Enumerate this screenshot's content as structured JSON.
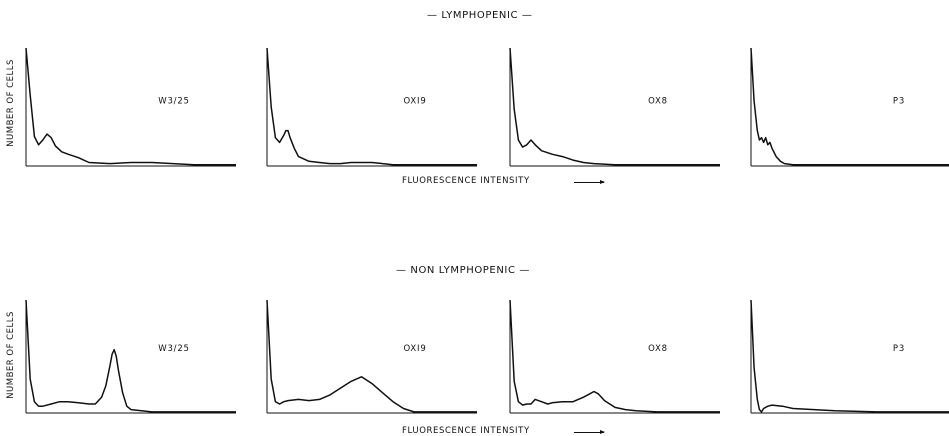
{
  "sections": [
    {
      "title": "— LYMPHOPENIC —",
      "ylabel": "NUMBER OF CELLS",
      "xlabel": "FLUORESCENCE INTENSITY"
    },
    {
      "title": "— NON LYMPHOPENIC —",
      "ylabel": "NUMBER OF CELLS",
      "xlabel": "FLUORESCENCE INTENSITY"
    }
  ],
  "chart_data": [
    {
      "type": "line",
      "row": 0,
      "title": "W3/25",
      "x": [
        0,
        2,
        4,
        6,
        8,
        10,
        12,
        14,
        17,
        20,
        25,
        30,
        40,
        50,
        60,
        70,
        80,
        90,
        100
      ],
      "y": [
        100,
        60,
        25,
        18,
        22,
        27,
        24,
        17,
        12,
        10,
        7,
        3,
        2,
        3,
        3,
        2,
        1,
        1,
        1
      ],
      "xlim": [
        0,
        100
      ],
      "ylim": [
        0,
        100
      ]
    },
    {
      "type": "line",
      "row": 0,
      "title": "OXI9",
      "x": [
        0,
        2,
        4,
        6,
        8,
        9,
        10,
        11,
        13,
        15,
        20,
        25,
        30,
        35,
        40,
        45,
        50,
        55,
        60,
        70,
        80,
        90,
        100
      ],
      "y": [
        100,
        50,
        24,
        20,
        26,
        30,
        30,
        24,
        15,
        8,
        4,
        3,
        2,
        2,
        3,
        3,
        3,
        2,
        1,
        1,
        1,
        1,
        1
      ],
      "xlim": [
        0,
        100
      ],
      "ylim": [
        0,
        100
      ]
    },
    {
      "type": "line",
      "row": 0,
      "title": "OX8",
      "x": [
        0,
        2,
        4,
        6,
        8,
        10,
        12,
        15,
        20,
        25,
        30,
        35,
        40,
        50,
        60,
        80,
        100
      ],
      "y": [
        100,
        48,
        22,
        16,
        18,
        22,
        18,
        13,
        10,
        8,
        5,
        3,
        2,
        1,
        1,
        1,
        1
      ],
      "xlim": [
        0,
        100
      ],
      "ylim": [
        0,
        100
      ]
    },
    {
      "type": "line",
      "row": 0,
      "title": "P3",
      "x": [
        0,
        1.5,
        3,
        4,
        5,
        6,
        7,
        8,
        9,
        10,
        12,
        14,
        16,
        20,
        25,
        30,
        40,
        60,
        80,
        100
      ],
      "y": [
        100,
        55,
        30,
        22,
        24,
        20,
        24,
        18,
        20,
        15,
        8,
        4,
        2,
        1,
        1,
        1,
        1,
        1,
        1,
        1
      ],
      "xlim": [
        0,
        100
      ],
      "ylim": [
        0,
        100
      ]
    },
    {
      "type": "line",
      "row": 1,
      "title": "W3/25",
      "x": [
        0,
        2,
        4,
        6,
        8,
        12,
        16,
        20,
        25,
        30,
        33,
        36,
        38,
        40,
        41,
        42,
        43,
        44,
        46,
        48,
        50,
        55,
        60,
        70,
        80,
        100
      ],
      "y": [
        100,
        30,
        10,
        6,
        6,
        8,
        10,
        10,
        9,
        8,
        8,
        14,
        24,
        42,
        52,
        56,
        50,
        38,
        18,
        6,
        3,
        2,
        1,
        1,
        1,
        1
      ],
      "xlim": [
        0,
        100
      ],
      "ylim": [
        0,
        100
      ]
    },
    {
      "type": "line",
      "row": 1,
      "title": "OXI9",
      "x": [
        0,
        2,
        4,
        6,
        8,
        10,
        15,
        20,
        25,
        30,
        35,
        40,
        45,
        50,
        55,
        60,
        65,
        70,
        75,
        80,
        90,
        100
      ],
      "y": [
        100,
        30,
        10,
        8,
        10,
        11,
        12,
        11,
        12,
        16,
        22,
        28,
        32,
        26,
        18,
        10,
        4,
        1,
        1,
        1,
        1,
        1
      ],
      "xlim": [
        0,
        100
      ],
      "ylim": [
        0,
        100
      ]
    },
    {
      "type": "line",
      "row": 1,
      "title": "OX8",
      "x": [
        0,
        2,
        4,
        6,
        8,
        10,
        12,
        15,
        18,
        20,
        25,
        30,
        35,
        38,
        40,
        42,
        45,
        50,
        55,
        60,
        70,
        80,
        100
      ],
      "y": [
        100,
        28,
        10,
        7,
        8,
        8,
        12,
        10,
        8,
        9,
        10,
        10,
        14,
        17,
        19,
        17,
        11,
        5,
        3,
        2,
        1,
        1,
        1
      ],
      "xlim": [
        0,
        100
      ],
      "ylim": [
        0,
        100
      ]
    },
    {
      "type": "line",
      "row": 1,
      "title": "P3",
      "x": [
        0,
        1.5,
        3,
        4,
        5,
        6,
        8,
        10,
        15,
        20,
        30,
        40,
        60,
        80,
        100
      ],
      "y": [
        100,
        40,
        12,
        3,
        1,
        4,
        6,
        7,
        6,
        4,
        3,
        2,
        1,
        1,
        1
      ],
      "xlim": [
        0,
        100
      ],
      "ylim": [
        0,
        100
      ]
    }
  ]
}
